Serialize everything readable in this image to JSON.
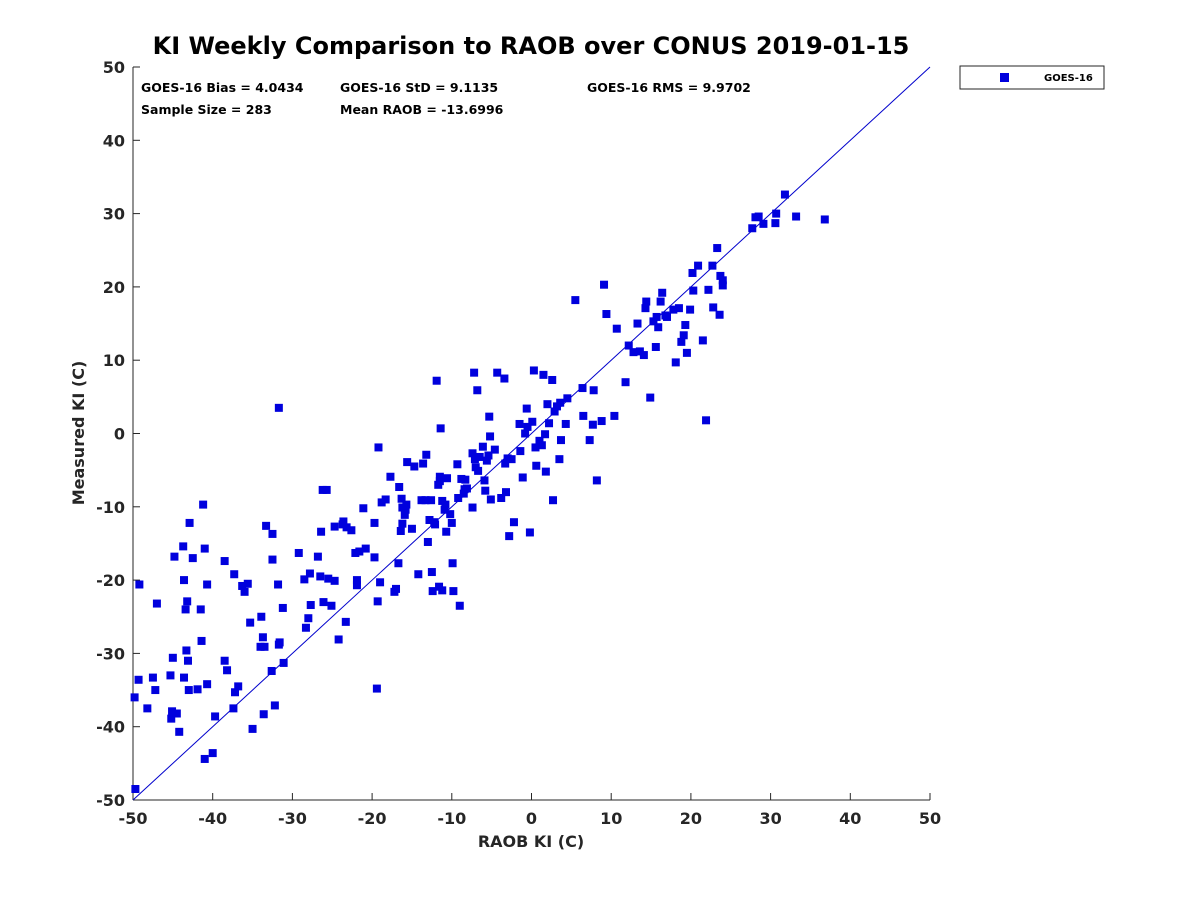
{
  "chart_data": {
    "type": "scatter",
    "title": "KI Weekly Comparison to RAOB over CONUS 2019-01-15",
    "xlabel": "RAOB KI (C)",
    "ylabel": "Measured KI (C)",
    "xlim": [
      -50,
      50
    ],
    "ylim": [
      -50,
      50
    ],
    "xticks": [
      "-50",
      "-40",
      "-30",
      "-20",
      "-10",
      "0",
      "10",
      "20",
      "30",
      "40",
      "50"
    ],
    "yticks": [
      "50",
      "40",
      "30",
      "20",
      "10",
      "0",
      "-10",
      "-20",
      "-30",
      "-40",
      "-50"
    ],
    "grid": false,
    "legend_position": "outside-top-right",
    "stats": {
      "bias": "GOES-16 Bias = 4.0434",
      "std": "GOES-16 StD = 9.1135",
      "rms": "GOES-16 RMS = 9.9702",
      "sample_size": "Sample Size = 283",
      "mean_raob": "Mean RAOB = -13.6996"
    },
    "reference_line": {
      "from": [
        -50,
        -50
      ],
      "to": [
        50,
        50
      ],
      "color": "#0000cc"
    },
    "series": [
      {
        "name": "GOES-16",
        "color": "#0000dd",
        "marker": "square",
        "points": [
          [
            -49.7,
            -48.5
          ],
          [
            -49.8,
            -36.0
          ],
          [
            -49.3,
            -33.6
          ],
          [
            -49.2,
            -20.6
          ],
          [
            -48.2,
            -37.5
          ],
          [
            -47.5,
            -33.3
          ],
          [
            -47.2,
            -35.0
          ],
          [
            -47.0,
            -23.2
          ],
          [
            -45.3,
            -33.0
          ],
          [
            -45.2,
            -38.9
          ],
          [
            -45.0,
            -30.6
          ],
          [
            -45.1,
            -37.9
          ],
          [
            -44.8,
            -16.8
          ],
          [
            -44.5,
            -38.2
          ],
          [
            -44.2,
            -40.7
          ],
          [
            -43.7,
            -15.4
          ],
          [
            -43.6,
            -20.0
          ],
          [
            -43.6,
            -33.3
          ],
          [
            -43.4,
            -24.0
          ],
          [
            -43.3,
            -29.6
          ],
          [
            -43.2,
            -22.9
          ],
          [
            -43.1,
            -31.0
          ],
          [
            -43.0,
            -35.0
          ],
          [
            -42.9,
            -12.2
          ],
          [
            -42.5,
            -17.0
          ],
          [
            -41.9,
            -34.9
          ],
          [
            -41.5,
            -24.0
          ],
          [
            -41.4,
            -28.3
          ],
          [
            -41.2,
            -9.7
          ],
          [
            -41.0,
            -15.7
          ],
          [
            -41.0,
            -44.4
          ],
          [
            -40.7,
            -34.2
          ],
          [
            -40.7,
            -20.6
          ],
          [
            -40.0,
            -43.6
          ],
          [
            -39.7,
            -38.6
          ],
          [
            -38.5,
            -17.4
          ],
          [
            -38.5,
            -31.0
          ],
          [
            -38.2,
            -32.3
          ],
          [
            -37.4,
            -37.5
          ],
          [
            -37.3,
            -19.2
          ],
          [
            -37.2,
            -35.3
          ],
          [
            -36.8,
            -34.5
          ],
          [
            -36.3,
            -20.8
          ],
          [
            -36.0,
            -21.6
          ],
          [
            -35.6,
            -20.5
          ],
          [
            -35.3,
            -25.8
          ],
          [
            -35.0,
            -40.3
          ],
          [
            -34.0,
            -29.1
          ],
          [
            -33.9,
            -25.0
          ],
          [
            -33.7,
            -27.8
          ],
          [
            -33.6,
            -38.3
          ],
          [
            -33.5,
            -29.1
          ],
          [
            -33.3,
            -12.6
          ],
          [
            -32.6,
            -32.4
          ],
          [
            -32.5,
            -17.2
          ],
          [
            -32.5,
            -13.7
          ],
          [
            -32.2,
            -37.1
          ],
          [
            -31.8,
            -20.6
          ],
          [
            -31.7,
            -28.8
          ],
          [
            -31.7,
            3.5
          ],
          [
            -31.6,
            -28.5
          ],
          [
            -31.2,
            -23.8
          ],
          [
            -31.1,
            -31.3
          ],
          [
            -29.2,
            -16.3
          ],
          [
            -28.5,
            -19.9
          ],
          [
            -28.3,
            -26.5
          ],
          [
            -28.0,
            -25.2
          ],
          [
            -27.7,
            -23.4
          ],
          [
            -27.8,
            -19.1
          ],
          [
            -26.8,
            -16.8
          ],
          [
            -26.5,
            -19.5
          ],
          [
            -26.4,
            -13.4
          ],
          [
            -26.2,
            -7.7
          ],
          [
            -26.1,
            -23.0
          ],
          [
            -25.7,
            -7.7
          ],
          [
            -25.5,
            -19.8
          ],
          [
            -25.1,
            -23.5
          ],
          [
            -24.7,
            -20.1
          ],
          [
            -24.7,
            -12.7
          ],
          [
            -24.2,
            -28.1
          ],
          [
            -23.7,
            -12.4
          ],
          [
            -23.6,
            -12.0
          ],
          [
            -23.3,
            -25.7
          ],
          [
            -23.2,
            -12.8
          ],
          [
            -22.6,
            -13.2
          ],
          [
            -22.1,
            -16.3
          ],
          [
            -21.9,
            -20.0
          ],
          [
            -21.9,
            -20.7
          ],
          [
            -21.6,
            -16.1
          ],
          [
            -21.1,
            -10.2
          ],
          [
            -20.8,
            -15.7
          ],
          [
            -19.7,
            -16.9
          ],
          [
            -19.7,
            -12.2
          ],
          [
            -19.4,
            -34.8
          ],
          [
            -19.3,
            -22.9
          ],
          [
            -19.2,
            -1.9
          ],
          [
            -19.0,
            -20.3
          ],
          [
            -18.8,
            -9.4
          ],
          [
            -18.3,
            -9.0
          ],
          [
            -17.7,
            -5.9
          ],
          [
            -17.2,
            -21.6
          ],
          [
            -17.0,
            -21.2
          ],
          [
            -16.7,
            -17.7
          ],
          [
            -16.6,
            -7.3
          ],
          [
            -16.4,
            -13.3
          ],
          [
            -16.3,
            -8.9
          ],
          [
            -16.2,
            -12.3
          ],
          [
            -16.2,
            -10.1
          ],
          [
            -15.9,
            -11.1
          ],
          [
            -15.8,
            -10.4
          ],
          [
            -15.7,
            -9.7
          ],
          [
            -15.6,
            -3.9
          ],
          [
            -15.0,
            -13.0
          ],
          [
            -14.7,
            -4.5
          ],
          [
            -14.2,
            -19.2
          ],
          [
            -13.8,
            -9.1
          ],
          [
            -13.6,
            -4.1
          ],
          [
            -13.3,
            -9.1
          ],
          [
            -13.2,
            -2.9
          ],
          [
            -13.0,
            -14.8
          ],
          [
            -12.8,
            -11.8
          ],
          [
            -12.6,
            -9.1
          ],
          [
            -12.5,
            -18.9
          ],
          [
            -12.4,
            -21.5
          ],
          [
            -12.2,
            -12.1
          ],
          [
            -12.1,
            -12.4
          ],
          [
            -11.9,
            7.2
          ],
          [
            -11.7,
            -7.0
          ],
          [
            -11.6,
            -20.9
          ],
          [
            -11.5,
            -6.5
          ],
          [
            -11.5,
            -5.9
          ],
          [
            -11.4,
            0.7
          ],
          [
            -11.2,
            -9.2
          ],
          [
            -11.2,
            -21.4
          ],
          [
            -10.9,
            -10.4
          ],
          [
            -10.8,
            -9.7
          ],
          [
            -10.7,
            -13.4
          ],
          [
            -10.6,
            -6.1
          ],
          [
            -10.2,
            -11.0
          ],
          [
            -10.0,
            -12.2
          ],
          [
            -9.9,
            -17.7
          ],
          [
            -9.8,
            -21.5
          ],
          [
            -9.3,
            -4.2
          ],
          [
            -9.2,
            -8.8
          ],
          [
            -9.0,
            -23.5
          ],
          [
            -8.8,
            -6.2
          ],
          [
            -8.5,
            -8.2
          ],
          [
            -8.4,
            -7.6
          ],
          [
            -8.3,
            -6.3
          ],
          [
            -8.1,
            -7.5
          ],
          [
            -7.4,
            -2.7
          ],
          [
            -7.4,
            -10.1
          ],
          [
            -7.2,
            8.3
          ],
          [
            -7.1,
            -3.5
          ],
          [
            -7.0,
            -4.6
          ],
          [
            -6.8,
            5.9
          ],
          [
            -6.7,
            -5.1
          ],
          [
            -6.5,
            -3.2
          ],
          [
            -6.1,
            -1.8
          ],
          [
            -5.9,
            -6.4
          ],
          [
            -5.8,
            -7.8
          ],
          [
            -5.6,
            -3.7
          ],
          [
            -5.4,
            -3.0
          ],
          [
            -5.3,
            2.3
          ],
          [
            -5.2,
            -0.4
          ],
          [
            -5.1,
            -9.0
          ],
          [
            -4.6,
            -2.2
          ],
          [
            -4.3,
            8.3
          ],
          [
            -3.8,
            -8.8
          ],
          [
            -3.4,
            7.5
          ],
          [
            -3.3,
            -4.1
          ],
          [
            -3.2,
            -8.0
          ],
          [
            -3.0,
            -3.4
          ],
          [
            -2.8,
            -14.0
          ],
          [
            -2.5,
            -3.5
          ],
          [
            -2.2,
            -12.1
          ],
          [
            -1.5,
            1.3
          ],
          [
            -1.4,
            -2.4
          ],
          [
            -1.1,
            -6.0
          ],
          [
            -0.8,
            0.0
          ],
          [
            -0.6,
            3.4
          ],
          [
            -0.5,
            0.9
          ],
          [
            -0.2,
            -13.5
          ],
          [
            0.1,
            1.6
          ],
          [
            0.3,
            8.6
          ],
          [
            0.5,
            -1.9
          ],
          [
            0.6,
            -4.4
          ],
          [
            1.0,
            -1.0
          ],
          [
            1.3,
            -1.6
          ],
          [
            1.5,
            8.0
          ],
          [
            1.7,
            -0.1
          ],
          [
            1.8,
            -5.2
          ],
          [
            2.0,
            4.0
          ],
          [
            2.2,
            1.4
          ],
          [
            2.6,
            7.3
          ],
          [
            2.7,
            -9.1
          ],
          [
            2.9,
            3.0
          ],
          [
            3.2,
            3.7
          ],
          [
            3.5,
            -3.5
          ],
          [
            3.6,
            4.2
          ],
          [
            3.7,
            -0.9
          ],
          [
            4.3,
            1.3
          ],
          [
            4.5,
            4.8
          ],
          [
            5.5,
            18.2
          ],
          [
            6.4,
            6.2
          ],
          [
            6.5,
            2.4
          ],
          [
            7.3,
            -0.9
          ],
          [
            7.7,
            1.2
          ],
          [
            7.8,
            5.9
          ],
          [
            8.2,
            -6.4
          ],
          [
            8.8,
            1.7
          ],
          [
            9.1,
            20.3
          ],
          [
            9.4,
            16.3
          ],
          [
            10.4,
            2.4
          ],
          [
            10.7,
            14.3
          ],
          [
            11.8,
            7.0
          ],
          [
            12.2,
            12.0
          ],
          [
            12.8,
            11.1
          ],
          [
            13.3,
            15.0
          ],
          [
            13.6,
            11.2
          ],
          [
            14.1,
            10.7
          ],
          [
            14.3,
            17.1
          ],
          [
            14.4,
            18.0
          ],
          [
            14.9,
            4.9
          ],
          [
            15.3,
            15.3
          ],
          [
            15.6,
            11.8
          ],
          [
            15.7,
            15.9
          ],
          [
            15.9,
            14.5
          ],
          [
            16.2,
            18.0
          ],
          [
            16.4,
            19.2
          ],
          [
            16.8,
            16.1
          ],
          [
            17.0,
            15.9
          ],
          [
            17.8,
            16.9
          ],
          [
            18.1,
            9.7
          ],
          [
            18.5,
            17.1
          ],
          [
            18.8,
            12.5
          ],
          [
            19.1,
            13.4
          ],
          [
            19.3,
            14.8
          ],
          [
            19.5,
            11.0
          ],
          [
            19.9,
            16.9
          ],
          [
            20.2,
            21.9
          ],
          [
            20.3,
            19.5
          ],
          [
            20.9,
            22.9
          ],
          [
            21.5,
            12.7
          ],
          [
            21.9,
            1.8
          ],
          [
            22.2,
            19.6
          ],
          [
            22.7,
            22.9
          ],
          [
            22.8,
            17.2
          ],
          [
            23.3,
            25.3
          ],
          [
            23.6,
            16.2
          ],
          [
            23.7,
            21.5
          ],
          [
            24.0,
            20.2
          ],
          [
            24.0,
            20.9
          ],
          [
            27.7,
            28.0
          ],
          [
            28.1,
            29.5
          ],
          [
            28.5,
            29.6
          ],
          [
            29.1,
            28.6
          ],
          [
            30.6,
            28.7
          ],
          [
            30.7,
            30.0
          ],
          [
            31.8,
            32.6
          ],
          [
            33.2,
            29.6
          ],
          [
            36.8,
            29.2
          ]
        ]
      }
    ]
  }
}
